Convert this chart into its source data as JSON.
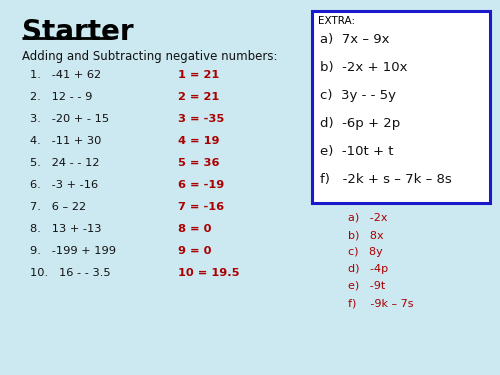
{
  "title": "Starter",
  "subtitle": "Adding and Subtracting negative numbers:",
  "background_color": "#cce8f0",
  "title_color": "#000000",
  "subtitle_color": "#111111",
  "questions_black": [
    "1.   -41 + 62",
    "2.   12 - - 9",
    "3.   -20 + - 15",
    "4.   -11 + 30",
    "5.   24 - - 12",
    "6.   -3 + -16",
    "7.   6 – 22",
    "8.   13 + -13",
    "9.   -199 + 199",
    "10.   16 - - 3.5"
  ],
  "answers_red": [
    "1 = 21",
    "2 = 21",
    "3 = -35",
    "4 = 19",
    "5 = 36",
    "6 = -19",
    "7 = -16",
    "8 = 0",
    "9 = 0",
    "10 = 19.5"
  ],
  "extra_label": "EXTRA:",
  "extra_questions": [
    "a)  7x – 9x",
    "b)  -2x + 10x",
    "c)  3y - - 5y",
    "d)  -6p + 2p",
    "e)  -10t + t",
    "f)   -2k + s – 7k – 8s"
  ],
  "extra_answers": [
    "a)   -2x",
    "b)   8x",
    "c)   8y",
    "d)   -4p",
    "e)   -9t",
    "f)    -9k – 7s"
  ],
  "box_edge_color": "#1a1acc",
  "answer_color": "#aa0000",
  "question_color": "#111111"
}
